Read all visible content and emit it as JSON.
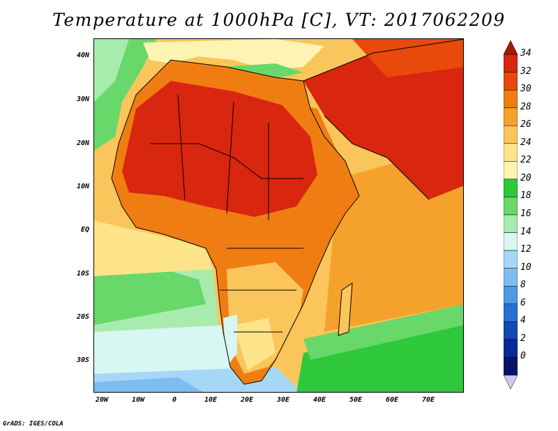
{
  "title": "Temperature at 1000hPa [C], VT: 2017062209",
  "credit": "GrADS: IGES/COLA",
  "lat_labels": [
    "40N",
    "30N",
    "20N",
    "10N",
    "EQ",
    "10S",
    "20S",
    "30S"
  ],
  "lon_labels": [
    "20W",
    "10W",
    "0",
    "10E",
    "20E",
    "30E",
    "40E",
    "50E",
    "60E",
    "70E"
  ],
  "colorbar": {
    "labels": [
      "34",
      "32",
      "30",
      "28",
      "26",
      "24",
      "22",
      "20",
      "18",
      "16",
      "14",
      "12",
      "10",
      "8",
      "6",
      "4",
      "2",
      "0"
    ],
    "colors": [
      "#d9260f",
      "#e84a0c",
      "#f07d12",
      "#f5a22c",
      "#fac55a",
      "#fde38a",
      "#fdf4b3",
      "#2ec83a",
      "#67d869",
      "#a7ecad",
      "#d8f6f2",
      "#a7d7f6",
      "#7fbcf1",
      "#4d99e6",
      "#2470d3",
      "#1448b4",
      "#0a2896",
      "#06146a"
    ],
    "top_arrow_color": "#a11a08",
    "bottom_arrow_color": "#cfc8f0"
  },
  "legend_colors": {
    "ocean_warm": "#fac55a",
    "ocean_cool": "#67d869",
    "sahara_hot": "#d9260f",
    "land_mid": "#f07d12"
  }
}
